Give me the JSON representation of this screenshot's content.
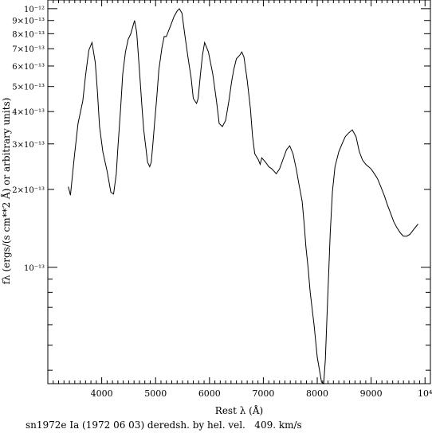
{
  "chart_data": {
    "type": "line",
    "title": "",
    "xlabel": "Rest λ (Å)",
    "ylabel": "fλ (ergs/(s cm**2 Å) or arbitrary units)",
    "xscale": "linear",
    "yscale": "log",
    "xlim": [
      3000,
      10100
    ],
    "ylim": [
      3.55e-14,
      1.08e-12
    ],
    "grid": false,
    "xticks": [
      {
        "value": 4000,
        "label": "4000"
      },
      {
        "value": 5000,
        "label": "5000"
      },
      {
        "value": 6000,
        "label": "6000"
      },
      {
        "value": 7000,
        "label": "7000"
      },
      {
        "value": 8000,
        "label": "8000"
      },
      {
        "value": 9000,
        "label": "9000"
      },
      {
        "value": 10000,
        "label": "10⁴"
      }
    ],
    "yticks": [
      {
        "value": 1e-13,
        "label": "10⁻¹³"
      },
      {
        "value": 2e-13,
        "label": "2×10⁻¹³"
      },
      {
        "value": 3e-13,
        "label": "3×10⁻¹³"
      },
      {
        "value": 4e-13,
        "label": "4×10⁻¹³"
      },
      {
        "value": 5e-13,
        "label": "5×10⁻¹³"
      },
      {
        "value": 6e-13,
        "label": "6×10⁻¹³"
      },
      {
        "value": 7e-13,
        "label": "7×10⁻¹³"
      },
      {
        "value": 8e-13,
        "label": "8×10⁻¹³"
      },
      {
        "value": 9e-13,
        "label": "9×10⁻¹³"
      },
      {
        "value": 1e-12,
        "label": "10⁻¹²"
      }
    ],
    "series": [
      {
        "x": [
          3380,
          3420,
          3490,
          3560,
          3650,
          3700,
          3760,
          3820,
          3880,
          3920,
          3960,
          4020,
          4100,
          4170,
          4220,
          4270,
          4300,
          4350,
          4390,
          4440,
          4490,
          4540,
          4610,
          4650,
          4700,
          4750,
          4780,
          4820,
          4850,
          4890,
          4920,
          4950,
          4980,
          5020,
          5060,
          5120,
          5160,
          5200,
          5280,
          5340,
          5400,
          5440,
          5490,
          5540,
          5600,
          5660,
          5700,
          5760,
          5790,
          5830,
          5870,
          5910,
          5980,
          6060,
          6130,
          6180,
          6240,
          6300,
          6360,
          6410,
          6450,
          6500,
          6560,
          6600,
          6640,
          6700,
          6760,
          6800,
          6840,
          6910,
          6940,
          6970,
          7040,
          7100,
          7160,
          7200,
          7240,
          7300,
          7360,
          7430,
          7490,
          7550,
          7610,
          7660,
          7720,
          7760,
          7790,
          7830,
          7870,
          7940,
          8000,
          8080,
          8120,
          8150,
          8180,
          8210,
          8240,
          8280,
          8330,
          8400,
          8460,
          8520,
          8580,
          8650,
          8720,
          8780,
          8840,
          8900,
          8950,
          9000,
          9060,
          9120,
          9180,
          9250,
          9300,
          9360,
          9420,
          9480,
          9540,
          9600,
          9660,
          9720,
          9790,
          9870
        ],
        "y": [
          2.05e-13,
          1.9e-13,
          2.65e-13,
          3.6e-13,
          4.4e-13,
          5.5e-13,
          6.9e-13,
          7.4e-13,
          6.2e-13,
          4.8e-13,
          3.5e-13,
          2.8e-13,
          2.35e-13,
          1.95e-13,
          1.92e-13,
          2.3e-13,
          2.9e-13,
          4.1e-13,
          5.6e-13,
          6.8e-13,
          7.6e-13,
          8e-13,
          9e-13,
          8.1e-13,
          5.8e-13,
          4.1e-13,
          3.4e-13,
          2.9e-13,
          2.55e-13,
          2.45e-13,
          2.55e-13,
          3e-13,
          3.6e-13,
          4.5e-13,
          5.8e-13,
          7.1e-13,
          7.8e-13,
          7.8e-13,
          8.6e-13,
          9.3e-13,
          9.8e-13,
          1e-12,
          9.6e-13,
          8e-13,
          6.5e-13,
          5.4e-13,
          4.5e-13,
          4.3e-13,
          4.5e-13,
          5.5e-13,
          6.6e-13,
          7.4e-13,
          6.8e-13,
          5.6e-13,
          4.4e-13,
          3.6e-13,
          3.5e-13,
          3.7e-13,
          4.4e-13,
          5.2e-13,
          5.8e-13,
          6.4e-13,
          6.6e-13,
          6.8e-13,
          6.5e-13,
          5.3e-13,
          4.1e-13,
          3.2e-13,
          2.75e-13,
          2.6e-13,
          2.5e-13,
          2.65e-13,
          2.55e-13,
          2.45e-13,
          2.4e-13,
          2.35e-13,
          2.3e-13,
          2.4e-13,
          2.6e-13,
          2.85e-13,
          2.95e-13,
          2.75e-13,
          2.4e-13,
          2.1e-13,
          1.8e-13,
          1.45e-13,
          1.2e-13,
          1e-13,
          8e-14,
          6e-14,
          4.5e-14,
          3.6e-14,
          3.55e-14,
          4.4e-14,
          6.4e-14,
          9.2e-14,
          1.35e-13,
          1.95e-13,
          2.45e-13,
          2.8e-13,
          3e-13,
          3.2e-13,
          3.3e-13,
          3.4e-13,
          3.2e-13,
          2.8e-13,
          2.6e-13,
          2.5e-13,
          2.45e-13,
          2.4e-13,
          2.3e-13,
          2.2e-13,
          2.05e-13,
          1.88e-13,
          1.75e-13,
          1.62e-13,
          1.5e-13,
          1.42e-13,
          1.36e-13,
          1.32e-13,
          1.32e-13,
          1.34e-13,
          1.4e-13,
          1.47e-13
        ]
      }
    ]
  },
  "caption": "sn1972e Ia (1972 06 03) deredsh. by hel. vel.   409. km/s"
}
